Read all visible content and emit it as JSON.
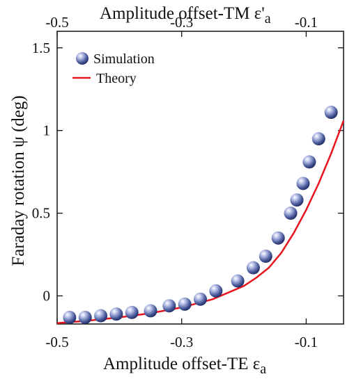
{
  "chart_data": {
    "type": "scatter",
    "title": "",
    "xlabel": "Amplitude offset-TE ε",
    "xlabel_sub": "a",
    "x2label": "Amplitude offset-TM ε'",
    "x2label_sub": "a",
    "ylabel": "Faraday rotation ψ (deg)",
    "xlim": [
      -0.5,
      -0.04
    ],
    "ylim": [
      -0.17,
      1.6
    ],
    "x_ticks": [
      -0.5,
      -0.3,
      -0.1
    ],
    "x_tick_labels": [
      "-0.5",
      "-0.3",
      "-0.1"
    ],
    "x2_ticks": [
      -0.5,
      -0.3,
      -0.1
    ],
    "x2_tick_labels": [
      "-0.5",
      "-0.3",
      "-0.1"
    ],
    "y_ticks": [
      0,
      0.5,
      1,
      1.5
    ],
    "y_tick_labels": [
      "0",
      "0.5",
      "1",
      "1.5"
    ],
    "grid": false,
    "legend_placement": "top-left",
    "series": [
      {
        "name": "Simulation",
        "kind": "scatter",
        "color": "#4a5a9a",
        "x": [
          -0.48,
          -0.455,
          -0.43,
          -0.405,
          -0.38,
          -0.35,
          -0.32,
          -0.295,
          -0.27,
          -0.245,
          -0.21,
          -0.185,
          -0.165,
          -0.145,
          -0.125,
          -0.115,
          -0.105,
          -0.095,
          -0.08,
          -0.06
        ],
        "y": [
          -0.13,
          -0.13,
          -0.12,
          -0.11,
          -0.1,
          -0.09,
          -0.06,
          -0.05,
          -0.02,
          0.03,
          0.09,
          0.17,
          0.24,
          0.35,
          0.5,
          0.58,
          0.68,
          0.81,
          0.95,
          1.11
        ]
      },
      {
        "name": "Theory",
        "kind": "line",
        "color": "#e8141e",
        "x": [
          -0.5,
          -0.45,
          -0.4,
          -0.35,
          -0.3,
          -0.25,
          -0.2,
          -0.18,
          -0.16,
          -0.14,
          -0.12,
          -0.1,
          -0.09,
          -0.08,
          -0.07,
          -0.06,
          -0.05,
          -0.04
        ],
        "y": [
          -0.165,
          -0.15,
          -0.13,
          -0.105,
          -0.07,
          -0.02,
          0.06,
          0.11,
          0.17,
          0.26,
          0.38,
          0.52,
          0.6,
          0.68,
          0.77,
          0.86,
          0.96,
          1.06
        ]
      }
    ]
  }
}
